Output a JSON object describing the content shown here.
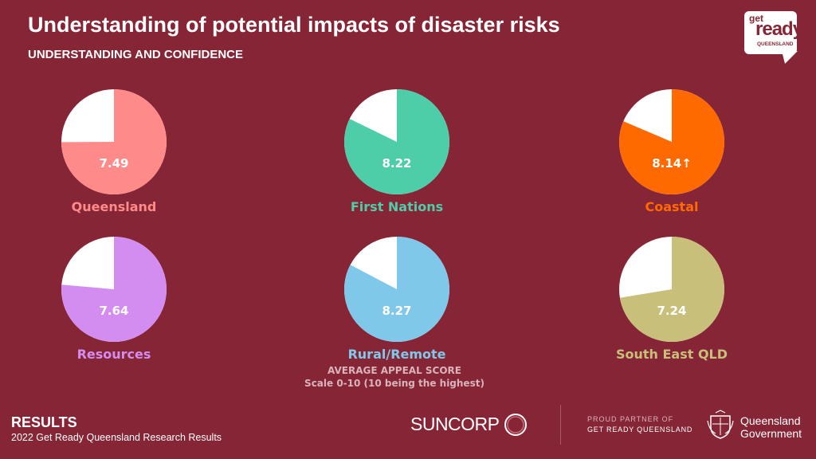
{
  "header": {
    "title": "Understanding of potential impacts of disaster risks",
    "subtitle": "UNDERSTANDING AND CONFIDENCE"
  },
  "logo": {
    "line1": "get",
    "line2": "ready",
    "line3": "QUEENSLAND"
  },
  "chart_data": {
    "type": "pie",
    "scale": [
      0,
      10
    ],
    "remainder_color": "#ffffff",
    "series": [
      {
        "name": "Queensland",
        "value": 7.49,
        "label": "7.49",
        "color": "#ff8a8a"
      },
      {
        "name": "First Nations",
        "value": 8.22,
        "label": "8.22",
        "color": "#4ecda9"
      },
      {
        "name": "Coastal",
        "value": 8.14,
        "label": "8.14↑",
        "color": "#ff6a00"
      },
      {
        "name": "Resources",
        "value": 7.64,
        "label": "7.64",
        "color": "#d38cf0"
      },
      {
        "name": "Rural/Remote",
        "value": 8.27,
        "label": "8.27",
        "color": "#7fc8ea"
      },
      {
        "name": "South East QLD",
        "value": 7.24,
        "label": "7.24",
        "color": "#c7bf7a"
      }
    ]
  },
  "note": {
    "line1": "AVERAGE APPEAL SCORE",
    "line2": "Scale 0-10 (10 being the highest)"
  },
  "footer": {
    "results_title": "RESULTS",
    "results_sub": "2022 Get Ready Queensland Research Results",
    "suncorp": "SUNCORP",
    "partner_line1": "PROUD PARTNER OF",
    "partner_line2": "GET READY QUEENSLAND",
    "qld_line1": "Queensland",
    "qld_line2": "Government"
  }
}
